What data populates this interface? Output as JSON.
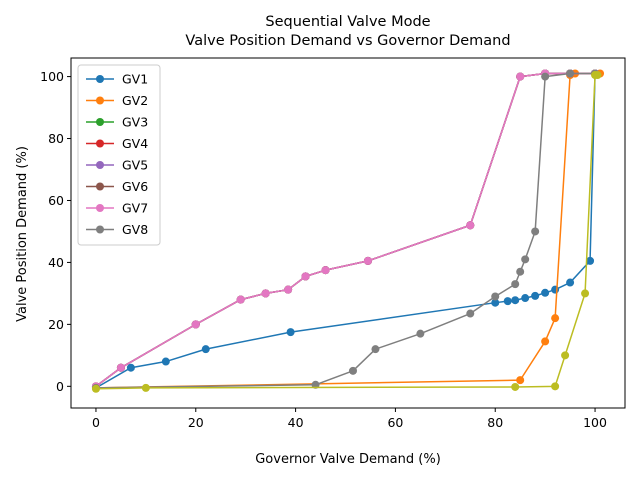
{
  "chart_data": {
    "type": "line",
    "title": "Sequential Valve Mode",
    "subtitle": "Valve Position Demand vs Governor Demand",
    "xlabel": "Governor Valve Demand (%)",
    "ylabel": "Valve Position Demand (%)",
    "xlim": [
      -5,
      106
    ],
    "ylim": [
      -7,
      106
    ],
    "xticks": [
      0,
      20,
      40,
      60,
      80,
      100
    ],
    "yticks": [
      0,
      20,
      40,
      60,
      80,
      100
    ],
    "grid": false,
    "legend_position": "upper-left",
    "series": [
      {
        "name": "GV1",
        "color": "#1f77b4",
        "points": [
          [
            0,
            -0.5
          ],
          [
            7,
            6
          ],
          [
            14,
            8
          ],
          [
            22,
            12
          ],
          [
            39,
            17.5
          ],
          [
            80,
            27
          ],
          [
            82.5,
            27.5
          ],
          [
            84,
            27.8
          ],
          [
            86,
            28.5
          ],
          [
            88,
            29.2
          ],
          [
            90,
            30.2
          ],
          [
            92,
            31.2
          ],
          [
            95,
            33.5
          ],
          [
            99,
            40.5
          ],
          [
            100,
            101
          ]
        ]
      },
      {
        "name": "GV2",
        "color": "#ff7f0e",
        "points": [
          [
            0,
            -0.5
          ],
          [
            85,
            2
          ],
          [
            90,
            14.5
          ],
          [
            92,
            22
          ],
          [
            95,
            100.5
          ],
          [
            96,
            101
          ],
          [
            100,
            101
          ],
          [
            101,
            101
          ]
        ]
      },
      {
        "name": "GV3",
        "color": "#2ca02c",
        "points": [
          [
            0,
            0
          ],
          [
            5,
            6
          ],
          [
            20,
            20
          ],
          [
            29,
            28
          ],
          [
            34,
            30
          ],
          [
            38.5,
            31.2
          ],
          [
            42,
            35.5
          ],
          [
            46,
            37.5
          ],
          [
            54.5,
            40.5
          ],
          [
            75,
            52
          ],
          [
            85,
            100
          ],
          [
            90,
            101
          ],
          [
            95,
            101
          ],
          [
            100,
            101
          ]
        ]
      },
      {
        "name": "GV4",
        "color": "#d62728",
        "points": [
          [
            0,
            0
          ],
          [
            5,
            6
          ],
          [
            20,
            20
          ],
          [
            29,
            28
          ],
          [
            34,
            30
          ],
          [
            38.5,
            31.2
          ],
          [
            42,
            35.5
          ],
          [
            46,
            37.5
          ],
          [
            54.5,
            40.5
          ],
          [
            75,
            52
          ],
          [
            85,
            100
          ],
          [
            90,
            101
          ],
          [
            95,
            101
          ],
          [
            100,
            101
          ]
        ]
      },
      {
        "name": "GV5",
        "color": "#9467bd",
        "points": [
          [
            0,
            0
          ],
          [
            5,
            6
          ],
          [
            20,
            20
          ],
          [
            29,
            28
          ],
          [
            34,
            30
          ],
          [
            38.5,
            31.2
          ],
          [
            42,
            35.5
          ],
          [
            46,
            37.5
          ],
          [
            54.5,
            40.5
          ],
          [
            75,
            52
          ],
          [
            85,
            100
          ],
          [
            90,
            101
          ],
          [
            95,
            101
          ],
          [
            100,
            101
          ]
        ]
      },
      {
        "name": "GV6",
        "color": "#8c564b",
        "points": [
          [
            0,
            0
          ],
          [
            5,
            6
          ],
          [
            20,
            20
          ],
          [
            29,
            28
          ],
          [
            34,
            30
          ],
          [
            38.5,
            31.2
          ],
          [
            42,
            35.5
          ],
          [
            46,
            37.5
          ],
          [
            54.5,
            40.5
          ],
          [
            75,
            52
          ],
          [
            85,
            100
          ],
          [
            90,
            101
          ],
          [
            95,
            101
          ],
          [
            100,
            101
          ]
        ]
      },
      {
        "name": "GV7",
        "color": "#e377c2",
        "points": [
          [
            0,
            0
          ],
          [
            5,
            6
          ],
          [
            20,
            20
          ],
          [
            29,
            28
          ],
          [
            34,
            30
          ],
          [
            38.5,
            31.2
          ],
          [
            42,
            35.5
          ],
          [
            46,
            37.5
          ],
          [
            54.5,
            40.5
          ],
          [
            75,
            52
          ],
          [
            85,
            100
          ],
          [
            90,
            101
          ],
          [
            95,
            101
          ],
          [
            100,
            101
          ]
        ]
      },
      {
        "name": "GV8",
        "color": "#7f7f7f",
        "points": [
          [
            0,
            -0.5
          ],
          [
            44,
            0.5
          ],
          [
            51.5,
            5
          ],
          [
            56,
            12
          ],
          [
            65,
            17
          ],
          [
            75,
            23.5
          ],
          [
            80,
            29
          ],
          [
            84,
            33
          ],
          [
            85,
            37
          ],
          [
            86,
            41
          ],
          [
            88,
            50
          ],
          [
            90,
            100
          ],
          [
            95,
            101
          ],
          [
            100,
            101
          ]
        ]
      },
      {
        "name": "",
        "color": "#bcbd22",
        "points": [
          [
            0,
            -0.8
          ],
          [
            10,
            -0.5
          ],
          [
            84,
            -0.2
          ],
          [
            92,
            0
          ],
          [
            94,
            10
          ],
          [
            98,
            30
          ],
          [
            100,
            100.5
          ],
          [
            100.5,
            100.5
          ]
        ]
      }
    ]
  }
}
